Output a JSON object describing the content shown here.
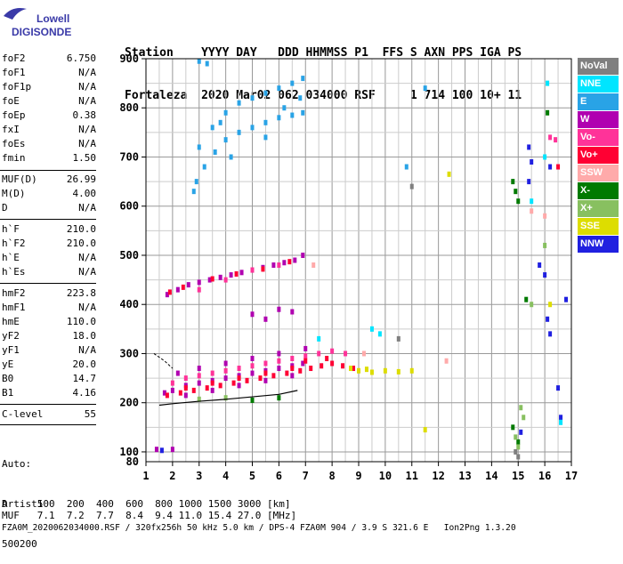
{
  "logo": {
    "line1": "Lowell",
    "line2": "DIGISONDE"
  },
  "header": {
    "line1": "Station    YYYY DAY   DDD HHMMSS P1  FFS S AXN PPS IGA PS",
    "line2": "Fortaleza  2020 Mar02 062 034000 RSF     1 714 100 10+ 11"
  },
  "params_block1": [
    {
      "label": "foF2",
      "value": "6.750"
    },
    {
      "label": "foF1",
      "value": "N/A"
    },
    {
      "label": "foF1p",
      "value": "N/A"
    },
    {
      "label": "foE",
      "value": "N/A"
    },
    {
      "label": "foEp",
      "value": "0.38"
    },
    {
      "label": "fxI",
      "value": "N/A"
    },
    {
      "label": "foEs",
      "value": "N/A"
    },
    {
      "label": "fmin",
      "value": "1.50"
    }
  ],
  "params_block2": [
    {
      "label": "MUF(D)",
      "value": "26.99"
    },
    {
      "label": "M(D)",
      "value": "4.00"
    },
    {
      "label": "D",
      "value": "N/A"
    }
  ],
  "params_block3": [
    {
      "label": "h`F",
      "value": "210.0"
    },
    {
      "label": "h`F2",
      "value": "210.0"
    },
    {
      "label": "h`E",
      "value": "N/A"
    },
    {
      "label": "h`Es",
      "value": "N/A"
    }
  ],
  "params_block4": [
    {
      "label": "hmF2",
      "value": "223.8"
    },
    {
      "label": "hmF1",
      "value": "N/A"
    },
    {
      "label": "hmE",
      "value": "110.0"
    },
    {
      "label": "yF2",
      "value": "18.0"
    },
    {
      "label": "yF1",
      "value": "N/A"
    },
    {
      "label": "yE",
      "value": "20.0"
    },
    {
      "label": "B0",
      "value": "14.7"
    },
    {
      "label": "B1",
      "value": "4.16"
    }
  ],
  "params_block5": [
    {
      "label": "C-level",
      "value": "55"
    }
  ],
  "auto": {
    "line1": "Auto:",
    "line2": "Artist5",
    "line3": "500200"
  },
  "footer": {
    "d_row": "D     100  200  400  600  800 1000 1500 3000 [km]",
    "muf_row": "MUF   7.1  7.2  7.7  8.4  9.4 11.0 15.4 27.0 [MHz]",
    "file_row": "FZA0M_2020062034000.RSF / 320fx256h 50 kHz 5.0 km / DPS-4 FZA0M 904 / 3.9 S 321.6 E   Ion2Png 1.3.20"
  },
  "legend": [
    {
      "label": "NoVal",
      "color": "#7f7f7f",
      "text_color": "#ffffff"
    },
    {
      "label": "NNE",
      "color": "#00e5ff",
      "text_color": "#ffffff"
    },
    {
      "label": "E",
      "color": "#29a3e6",
      "text_color": "#ffffff"
    },
    {
      "label": "W",
      "color": "#b000b0",
      "text_color": "#ffffff"
    },
    {
      "label": "Vo-",
      "color": "#ff3399",
      "text_color": "#ffffff"
    },
    {
      "label": "Vo+",
      "color": "#ff0033",
      "text_color": "#ffffff"
    },
    {
      "label": "SSW",
      "color": "#ffaaaa",
      "text_color": "#ffffff"
    },
    {
      "label": "X-",
      "color": "#007a00",
      "text_color": "#ffffff"
    },
    {
      "label": "X+",
      "color": "#88c060",
      "text_color": "#ffffff"
    },
    {
      "label": "SSE",
      "color": "#dddd00",
      "text_color": "#ffffff"
    },
    {
      "label": "NNW",
      "color": "#2020e0",
      "text_color": "#ffffff"
    }
  ],
  "chart_data": {
    "type": "scatter",
    "title": "",
    "xlabel": "",
    "ylabel": "",
    "xlim": [
      1,
      17
    ],
    "ylim": [
      80,
      900
    ],
    "x_ticks": [
      "1",
      "2",
      "3",
      "4",
      "5",
      "6",
      "7",
      "8",
      "9",
      "10",
      "11",
      "12",
      "13",
      "14",
      "15",
      "16",
      "17"
    ],
    "y_ticks": [
      "100",
      "200",
      "300",
      "400",
      "500",
      "600",
      "700",
      "800",
      "900"
    ],
    "y_bottom_label": "80",
    "grid": true,
    "trace_curve": {
      "name": "",
      "x": [
        1.5,
        2,
        3,
        4,
        5,
        6,
        6.7
      ],
      "y": [
        195,
        198,
        203,
        207,
        212,
        217,
        225
      ]
    },
    "dashed_curve": {
      "name": "",
      "x": [
        1.3,
        1.7,
        2.0
      ],
      "y": [
        300,
        285,
        270
      ]
    },
    "series": [
      {
        "name": "E",
        "color": "#29a3e6",
        "points": [
          [
            2.8,
            630
          ],
          [
            3.2,
            680
          ],
          [
            3.6,
            710
          ],
          [
            4,
            735
          ],
          [
            4.5,
            750
          ],
          [
            5,
            760
          ],
          [
            5.5,
            770
          ],
          [
            6,
            780
          ],
          [
            6.5,
            785
          ],
          [
            6.9,
            790
          ],
          [
            3,
            720
          ],
          [
            3.5,
            760
          ],
          [
            4,
            790
          ],
          [
            4.5,
            810
          ],
          [
            5,
            820
          ],
          [
            5.5,
            830
          ],
          [
            6,
            840
          ],
          [
            6.5,
            850
          ],
          [
            6.9,
            860
          ],
          [
            3,
            895
          ],
          [
            3.3,
            890
          ],
          [
            2.9,
            650
          ],
          [
            5.5,
            740
          ],
          [
            6.2,
            800
          ],
          [
            6.8,
            820
          ],
          [
            4.2,
            700
          ],
          [
            11.5,
            840
          ],
          [
            10.8,
            680
          ],
          [
            3.8,
            770
          ]
        ]
      },
      {
        "name": "W",
        "color": "#b000b0",
        "points": [
          [
            1.8,
            420
          ],
          [
            2.2,
            430
          ],
          [
            2.6,
            440
          ],
          [
            3,
            445
          ],
          [
            3.4,
            450
          ],
          [
            3.8,
            455
          ],
          [
            4.2,
            460
          ],
          [
            4.6,
            465
          ],
          [
            5,
            470
          ],
          [
            5.4,
            475
          ],
          [
            5.8,
            480
          ],
          [
            6.2,
            485
          ],
          [
            6.6,
            490
          ],
          [
            6.9,
            500
          ],
          [
            1.7,
            220
          ],
          [
            2,
            225
          ],
          [
            2.5,
            235
          ],
          [
            3,
            240
          ],
          [
            3.5,
            245
          ],
          [
            4,
            250
          ],
          [
            4.5,
            255
          ],
          [
            5,
            260
          ],
          [
            5.5,
            265
          ],
          [
            6,
            270
          ],
          [
            6.5,
            275
          ],
          [
            6.9,
            280
          ],
          [
            2.2,
            260
          ],
          [
            3,
            270
          ],
          [
            4,
            280
          ],
          [
            5,
            290
          ],
          [
            6,
            300
          ],
          [
            7,
            310
          ],
          [
            2.5,
            215
          ],
          [
            3.5,
            225
          ],
          [
            4.5,
            235
          ],
          [
            5.5,
            245
          ],
          [
            6.5,
            255
          ],
          [
            5,
            380
          ],
          [
            5.5,
            370
          ],
          [
            6,
            390
          ],
          [
            6.5,
            385
          ],
          [
            1.4,
            105
          ],
          [
            2,
            105
          ]
        ]
      },
      {
        "name": "Vo-",
        "color": "#ff3399",
        "points": [
          [
            2,
            240
          ],
          [
            2.5,
            250
          ],
          [
            3,
            255
          ],
          [
            3.5,
            260
          ],
          [
            4,
            265
          ],
          [
            4.5,
            270
          ],
          [
            5,
            275
          ],
          [
            5.5,
            280
          ],
          [
            6,
            285
          ],
          [
            6.5,
            290
          ],
          [
            7,
            295
          ],
          [
            7.5,
            300
          ],
          [
            8,
            305
          ],
          [
            8.5,
            300
          ],
          [
            3,
            430
          ],
          [
            4,
            450
          ],
          [
            5,
            470
          ],
          [
            6,
            480
          ],
          [
            16.2,
            740
          ],
          [
            16.4,
            735
          ]
        ]
      },
      {
        "name": "Vo+",
        "color": "#ff0033",
        "points": [
          [
            1.8,
            215
          ],
          [
            2.3,
            220
          ],
          [
            2.8,
            225
          ],
          [
            3.3,
            230
          ],
          [
            3.8,
            235
          ],
          [
            4.3,
            240
          ],
          [
            4.8,
            245
          ],
          [
            5.3,
            250
          ],
          [
            5.8,
            255
          ],
          [
            6.3,
            260
          ],
          [
            6.8,
            265
          ],
          [
            7.2,
            270
          ],
          [
            7.6,
            275
          ],
          [
            8,
            280
          ],
          [
            8.4,
            275
          ],
          [
            8.8,
            270
          ],
          [
            1.9,
            425
          ],
          [
            2.4,
            435
          ],
          [
            3.5,
            452
          ],
          [
            4.4,
            462
          ],
          [
            5.4,
            472
          ],
          [
            6.4,
            487
          ],
          [
            2.5,
            230
          ],
          [
            3.5,
            240
          ],
          [
            4.5,
            250
          ],
          [
            5.5,
            260
          ],
          [
            6.5,
            270
          ],
          [
            7,
            285
          ],
          [
            7.8,
            290
          ],
          [
            16.5,
            680
          ]
        ]
      },
      {
        "name": "X-",
        "color": "#007a00",
        "points": [
          [
            14.8,
            650
          ],
          [
            14.9,
            630
          ],
          [
            15,
            610
          ],
          [
            14.8,
            150
          ],
          [
            15,
            120
          ],
          [
            16.1,
            790
          ],
          [
            15.3,
            410
          ],
          [
            5,
            205
          ],
          [
            6,
            210
          ]
        ]
      },
      {
        "name": "X+",
        "color": "#88c060",
        "points": [
          [
            15.1,
            190
          ],
          [
            15.2,
            170
          ],
          [
            14.9,
            130
          ],
          [
            15,
            110
          ],
          [
            16,
            520
          ],
          [
            15.5,
            400
          ],
          [
            4,
            210
          ],
          [
            3,
            207
          ]
        ]
      },
      {
        "name": "SSE",
        "color": "#dddd00",
        "points": [
          [
            9,
            265
          ],
          [
            9.5,
            262
          ],
          [
            10,
            265
          ],
          [
            10.5,
            263
          ],
          [
            11,
            265
          ],
          [
            8.7,
            270
          ],
          [
            9.3,
            268
          ],
          [
            12.4,
            665
          ],
          [
            11.5,
            145
          ],
          [
            16.2,
            400
          ]
        ]
      },
      {
        "name": "NNW",
        "color": "#2020e0",
        "points": [
          [
            15.4,
            720
          ],
          [
            15.5,
            690
          ],
          [
            15.4,
            650
          ],
          [
            15.8,
            480
          ],
          [
            16,
            460
          ],
          [
            16.1,
            370
          ],
          [
            16.2,
            340
          ],
          [
            16.5,
            230
          ],
          [
            16.6,
            170
          ],
          [
            16.8,
            410
          ],
          [
            16.2,
            680
          ],
          [
            15.1,
            140
          ],
          [
            1.6,
            103
          ]
        ]
      },
      {
        "name": "NNE",
        "color": "#00e5ff",
        "points": [
          [
            9.5,
            350
          ],
          [
            9.8,
            340
          ],
          [
            16.1,
            850
          ],
          [
            16,
            700
          ],
          [
            15.5,
            610
          ],
          [
            16.6,
            160
          ],
          [
            7.5,
            330
          ]
        ]
      },
      {
        "name": "SSW",
        "color": "#ffaaaa",
        "points": [
          [
            7.3,
            480
          ],
          [
            12.3,
            285
          ],
          [
            15.5,
            590
          ],
          [
            16,
            580
          ],
          [
            9.2,
            300
          ]
        ]
      },
      {
        "name": "NoVal",
        "color": "#7f7f7f",
        "points": [
          [
            11,
            640
          ],
          [
            14.9,
            100
          ],
          [
            15,
            90
          ],
          [
            10.5,
            330
          ]
        ]
      }
    ]
  }
}
